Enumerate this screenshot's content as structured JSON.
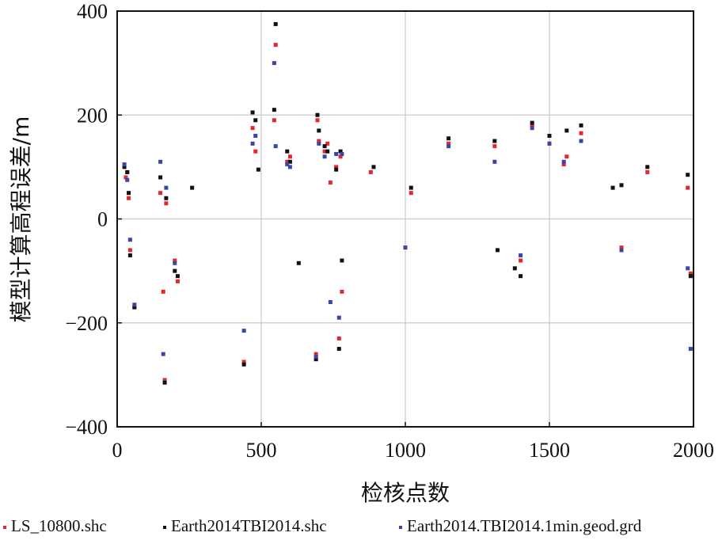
{
  "chart_data": {
    "type": "scatter",
    "title": "",
    "xlabel": "检核点数",
    "ylabel": "模型计算高程误差/m",
    "xlim": [
      0,
      2000
    ],
    "ylim": [
      -400,
      400
    ],
    "x_ticks": [
      "0",
      "500",
      "1000",
      "1500",
      "2000"
    ],
    "y_ticks": [
      "400",
      "200",
      "0",
      "−200",
      "−400"
    ],
    "grid": true,
    "legend_position": "bottom",
    "colors": {
      "LS_10800.shc": "#e8262a",
      "Earth2014TBI2014.shc": "#111111",
      "Earth2014.TBI2014.1min.geod.grd": "#3a45a8"
    },
    "series": [
      {
        "name": "LS_10800.shc",
        "x": [
          30,
          35,
          40,
          45,
          60,
          150,
          160,
          165,
          170,
          200,
          210,
          440,
          470,
          480,
          545,
          550,
          590,
          600,
          690,
          695,
          700,
          720,
          730,
          740,
          760,
          770,
          775,
          780,
          880,
          1020,
          1150,
          1310,
          1400,
          1440,
          1500,
          1550,
          1560,
          1610,
          1750,
          1840,
          1980,
          1990
        ],
        "y": [
          80,
          90,
          40,
          -60,
          -170,
          50,
          -140,
          -310,
          30,
          -80,
          -120,
          -275,
          175,
          130,
          190,
          335,
          110,
          120,
          -260,
          190,
          150,
          130,
          145,
          70,
          100,
          -230,
          120,
          -140,
          90,
          50,
          145,
          140,
          -80,
          180,
          145,
          105,
          120,
          165,
          -55,
          90,
          60,
          -105
        ]
      },
      {
        "name": "Earth2014TBI2014.shc",
        "x": [
          25,
          35,
          40,
          45,
          60,
          150,
          165,
          170,
          200,
          210,
          260,
          440,
          470,
          480,
          490,
          545,
          550,
          590,
          600,
          630,
          690,
          695,
          700,
          720,
          730,
          760,
          770,
          775,
          780,
          890,
          1020,
          1150,
          1310,
          1320,
          1380,
          1400,
          1440,
          1500,
          1560,
          1610,
          1720,
          1750,
          1840,
          1980,
          1990
        ],
        "y": [
          100,
          90,
          50,
          -70,
          -170,
          80,
          -315,
          40,
          -100,
          -110,
          60,
          -280,
          205,
          190,
          95,
          210,
          375,
          130,
          110,
          -85,
          -270,
          200,
          170,
          140,
          130,
          95,
          -250,
          130,
          -80,
          100,
          60,
          155,
          150,
          -60,
          -95,
          -110,
          185,
          160,
          170,
          180,
          60,
          65,
          100,
          85,
          -110
        ]
      },
      {
        "name": "Earth2014.TBI2014.1min.geod.grd",
        "x": [
          25,
          35,
          45,
          60,
          150,
          160,
          170,
          200,
          440,
          470,
          480,
          545,
          550,
          590,
          600,
          690,
          700,
          720,
          740,
          760,
          770,
          780,
          1000,
          1150,
          1310,
          1400,
          1440,
          1500,
          1550,
          1610,
          1750,
          1980,
          1990
        ],
        "y": [
          105,
          75,
          -40,
          -165,
          110,
          -260,
          60,
          -85,
          -215,
          145,
          160,
          300,
          140,
          105,
          100,
          -265,
          145,
          120,
          -160,
          125,
          -190,
          125,
          -55,
          140,
          110,
          -70,
          175,
          145,
          110,
          150,
          -60,
          -95,
          -250
        ]
      }
    ]
  }
}
